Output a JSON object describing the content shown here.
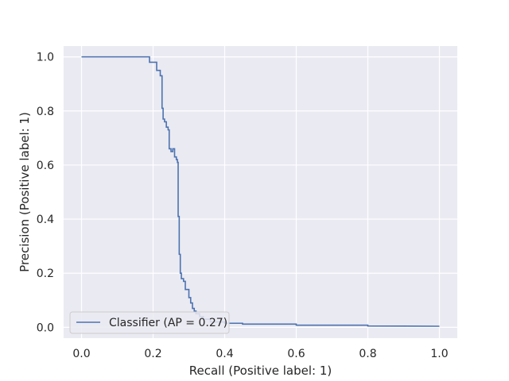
{
  "chart_data": {
    "type": "line",
    "title": "",
    "xlabel": "Recall (Positive label: 1)",
    "ylabel": "Precision (Positive label: 1)",
    "xlim": [
      -0.05,
      1.05
    ],
    "ylim": [
      -0.04,
      1.04
    ],
    "xticks": [
      0.0,
      0.2,
      0.4,
      0.6,
      0.8,
      1.0
    ],
    "xtick_labels": [
      "0.0",
      "0.2",
      "0.4",
      "0.6",
      "0.8",
      "1.0"
    ],
    "yticks": [
      0.0,
      0.2,
      0.4,
      0.6,
      0.8,
      1.0
    ],
    "ytick_labels": [
      "0.0",
      "0.2",
      "0.4",
      "0.6",
      "0.8",
      "1.0"
    ],
    "grid": true,
    "legend_position": "lower-left",
    "colors": {
      "background": "#eaeaf2",
      "grid": "#ffffff",
      "line": "#4c72b0",
      "text": "#262626"
    },
    "series": [
      {
        "name": "Classifier (AP = 0.27)",
        "step": true,
        "x": [
          0.0,
          0.19,
          0.19,
          0.21,
          0.21,
          0.22,
          0.22,
          0.225,
          0.225,
          0.228,
          0.228,
          0.232,
          0.232,
          0.237,
          0.237,
          0.242,
          0.242,
          0.245,
          0.245,
          0.25,
          0.25,
          0.255,
          0.255,
          0.26,
          0.26,
          0.265,
          0.265,
          0.268,
          0.268,
          0.27,
          0.27,
          0.273,
          0.273,
          0.276,
          0.276,
          0.279,
          0.279,
          0.285,
          0.285,
          0.29,
          0.29,
          0.3,
          0.3,
          0.305,
          0.305,
          0.31,
          0.31,
          0.315,
          0.315,
          0.32,
          0.32,
          0.33,
          0.33,
          0.34,
          0.34,
          0.36,
          0.36,
          0.4,
          0.4,
          0.45,
          0.45,
          0.6,
          0.6,
          0.8,
          0.8,
          1.0
        ],
        "y": [
          1.0,
          1.0,
          0.98,
          0.98,
          0.95,
          0.95,
          0.93,
          0.93,
          0.81,
          0.81,
          0.77,
          0.77,
          0.76,
          0.76,
          0.74,
          0.74,
          0.73,
          0.73,
          0.66,
          0.66,
          0.65,
          0.65,
          0.66,
          0.66,
          0.63,
          0.63,
          0.62,
          0.62,
          0.61,
          0.61,
          0.41,
          0.41,
          0.27,
          0.27,
          0.2,
          0.2,
          0.18,
          0.18,
          0.17,
          0.17,
          0.14,
          0.14,
          0.11,
          0.11,
          0.09,
          0.09,
          0.07,
          0.07,
          0.06,
          0.06,
          0.05,
          0.05,
          0.04,
          0.04,
          0.03,
          0.03,
          0.02,
          0.02,
          0.015,
          0.015,
          0.012,
          0.012,
          0.008,
          0.008,
          0.005,
          0.004
        ]
      }
    ]
  }
}
